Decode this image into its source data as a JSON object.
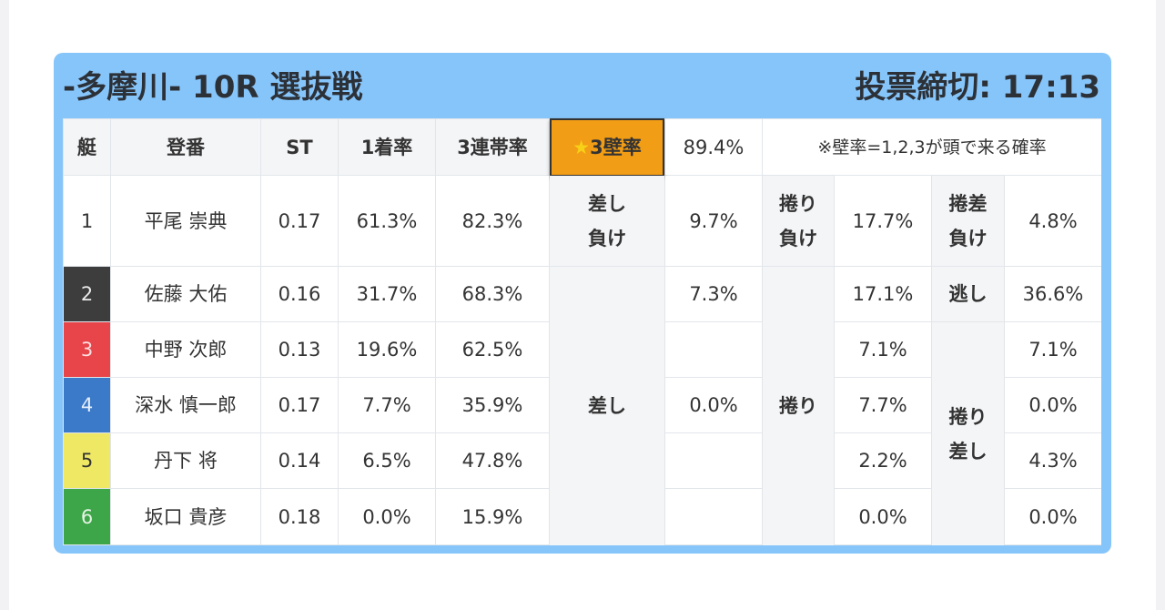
{
  "title": "-多摩川- 10R 選抜戦",
  "deadline": "投票締切: 17:13",
  "headers": {
    "boat": "艇",
    "name": "登番",
    "st": "ST",
    "win1": "1着率",
    "top3": "3連帯率",
    "wall_star": "★",
    "wall": "3壁率",
    "wall_value": "89.4%",
    "note": "※壁率=1,2,3が頭で来る確率"
  },
  "boat_colors": [
    "#ffffff",
    "#3d3d3d",
    "#e8454a",
    "#3b79c9",
    "#efe865",
    "#3da649"
  ],
  "rows": [
    {
      "boat": "1",
      "name": "平尾 崇典",
      "st": "0.17",
      "win1": "61.3%",
      "top3": "82.3%",
      "p1": "9.7%",
      "p2": "17.7%",
      "p3": "4.8%"
    },
    {
      "boat": "2",
      "name": "佐藤 大佑",
      "st": "0.16",
      "win1": "31.7%",
      "top3": "68.3%",
      "p1": "7.3%",
      "p2": "17.1%",
      "p3": "36.6%"
    },
    {
      "boat": "3",
      "name": "中野 次郎",
      "st": "0.13",
      "win1": "19.6%",
      "top3": "62.5%",
      "p1": "",
      "p2": "7.1%",
      "p3": "7.1%"
    },
    {
      "boat": "4",
      "name": "深水 慎一郎",
      "st": "0.17",
      "win1": "7.7%",
      "top3": "35.9%",
      "p1": "0.0%",
      "p2": "7.7%",
      "p3": "0.0%"
    },
    {
      "boat": "5",
      "name": "丹下 将",
      "st": "0.14",
      "win1": "6.5%",
      "top3": "47.8%",
      "p1": "",
      "p2": "2.2%",
      "p3": "4.3%"
    },
    {
      "boat": "6",
      "name": "坂口 貴彦",
      "st": "0.18",
      "win1": "0.0%",
      "top3": "15.9%",
      "p1": "",
      "p2": "0.0%",
      "p3": "0.0%"
    }
  ],
  "patterns": {
    "sashi_make_l1": "差し",
    "sashi_make_l2": "負け",
    "makuri_make_l1": "捲り",
    "makuri_make_l2": "負け",
    "makurisashi_make_l1": "捲差",
    "makurisashi_make_l2": "負け",
    "nigashi": "逃し",
    "sashi": "差し",
    "makuri": "捲り",
    "makurisashi_l1": "捲り",
    "makurisashi_l2": "差し"
  }
}
